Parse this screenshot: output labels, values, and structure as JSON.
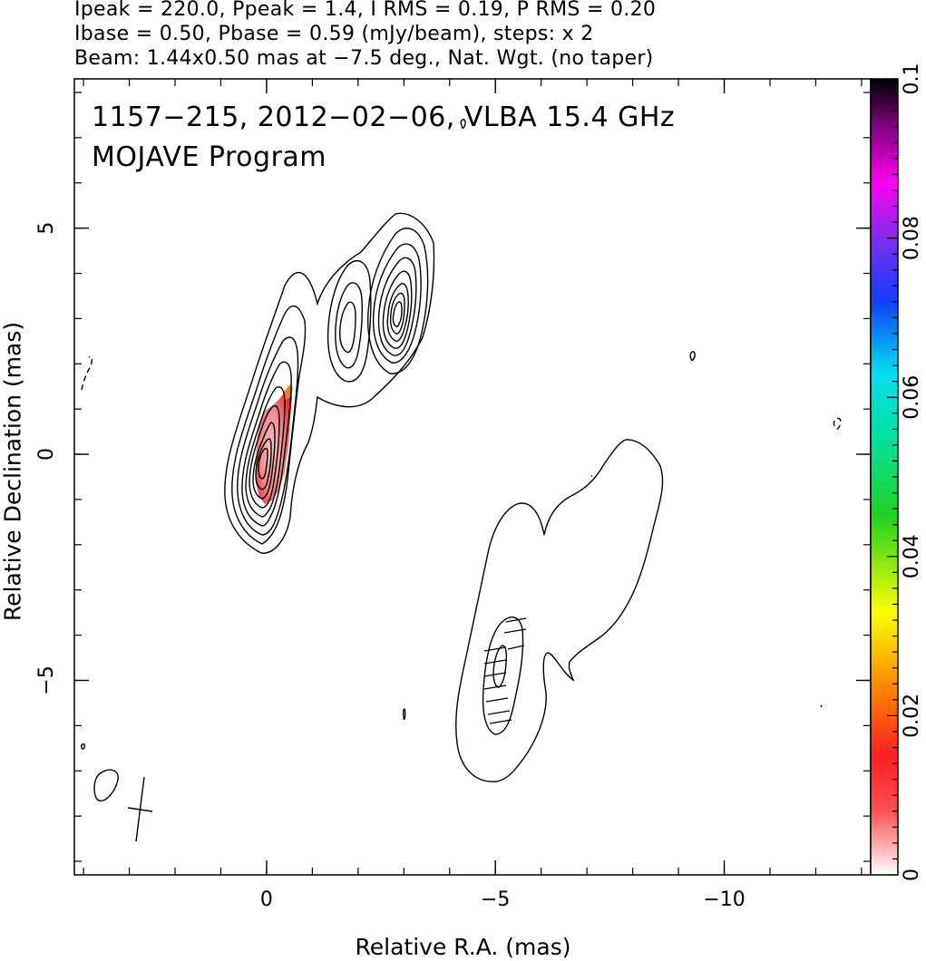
{
  "header": {
    "line1": "Ipeak = 220.0, Ppeak = 1.4, I RMS = 0.19, P RMS = 0.20",
    "line2": "Ibase = 0.50, Pbase = 0.59 (mJy/beam), steps: x 2",
    "line3": "Beam: 1.44x0.50 mas at −7.5 deg., Nat. Wgt. (no taper)"
  },
  "plot_title": {
    "line1": "1157−215, 2012−02−06, VLBA 15.4 GHz",
    "line2": "MOJAVE Program"
  },
  "chart_data": {
    "type": "contour",
    "xlabel": "Relative R.A. (mas)",
    "ylabel": "Relative Declination (mas)",
    "xlim": [
      4.2,
      -13.2
    ],
    "ylim": [
      -9.3,
      8.3
    ],
    "x_ticks": [
      {
        "value": 0,
        "label": "0"
      },
      {
        "value": -5,
        "label": "−5"
      },
      {
        "value": -10,
        "label": "−10"
      }
    ],
    "y_ticks": [
      {
        "value": 5,
        "label": "5"
      },
      {
        "value": 0,
        "label": "0"
      },
      {
        "value": -5,
        "label": "−5"
      }
    ],
    "colorbar": {
      "min": 0,
      "max": 0.1,
      "ticks": [
        {
          "value": 0,
          "label": "0"
        },
        {
          "value": 0.02,
          "label": "0.02"
        },
        {
          "value": 0.04,
          "label": "0.04"
        },
        {
          "value": 0.06,
          "label": "0.06"
        },
        {
          "value": 0.08,
          "label": "0.08"
        },
        {
          "value": 0.1,
          "label": "0.1"
        }
      ]
    },
    "ipeak_mjy_per_beam": 220.0,
    "ppeak_mjy_per_beam": 1.4,
    "contour_base_mjy_per_beam": 0.5,
    "contour_step_factor": 2,
    "core_contour_levels": 9,
    "beam": {
      "major_mas": 1.44,
      "minor_mas": 0.5,
      "pa_deg": -7.5
    },
    "polarization_peak_position": [
      0,
      0
    ]
  },
  "colors": {
    "contour": "#000000",
    "pol_core": "#f3a0a0",
    "pol_edge": "#e8282a",
    "pol_orange": "#f08020"
  }
}
